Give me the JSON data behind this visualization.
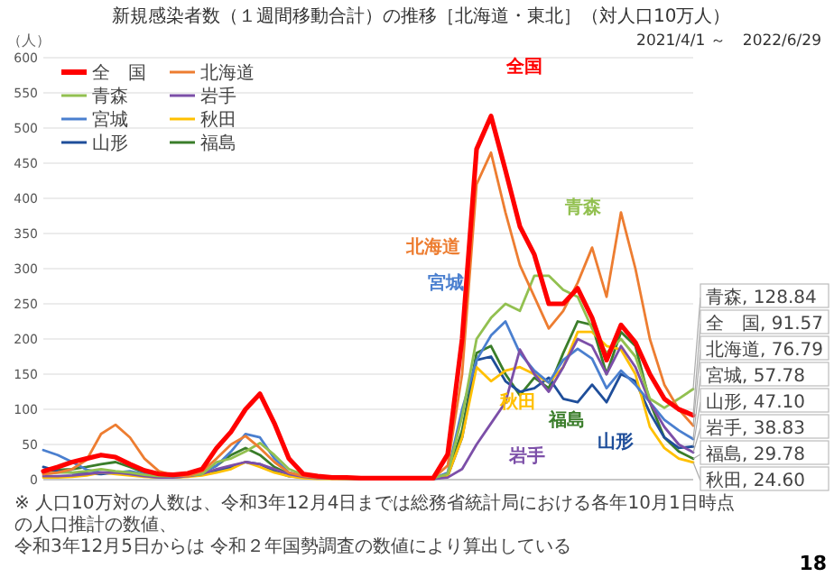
{
  "chart_data": {
    "type": "line",
    "title": "新規感染者数（１週間移動合計）の推移［北海道・東北］（対人口10万人）",
    "subtitle": "2021/4/1 ～　2022/6/29",
    "ylabel": "（人）",
    "categories": [
      null,
      null,
      null,
      null,
      null,
      null,
      null,
      null,
      null,
      null,
      null,
      null,
      null,
      null,
      null,
      null,
      null,
      null,
      null,
      null,
      null,
      null,
      null,
      null,
      null,
      null,
      null,
      null,
      null,
      null,
      null,
      null,
      null,
      null,
      null,
      null,
      null,
      null,
      null,
      null,
      null,
      null,
      null,
      null,
      null,
      null
    ],
    "ylim": [
      0,
      600
    ],
    "yticks": [
      0,
      50,
      100,
      150,
      200,
      250,
      300,
      350,
      400,
      450,
      500,
      550,
      600
    ],
    "grid": "y",
    "tick_labels": "y",
    "legend": "top left",
    "line_style": "solid",
    "marker": "none",
    "series": [
      {
        "name": "全　国",
        "color": "#ff0000",
        "values": [
          12,
          18,
          25,
          30,
          35,
          32,
          22,
          13,
          8,
          7,
          9,
          15,
          45,
          68,
          100,
          122,
          80,
          30,
          8,
          5,
          3,
          3,
          2,
          2,
          2,
          2,
          2,
          2,
          36,
          200,
          470,
          517,
          440,
          360,
          320,
          250,
          250,
          272,
          230,
          170,
          220,
          195,
          150,
          115,
          100,
          91.57
        ],
        "value_labels": [
          null,
          null,
          null,
          null,
          null,
          null,
          null,
          null,
          null,
          null,
          null,
          null,
          null,
          null,
          null,
          null,
          null,
          null,
          null,
          null,
          null,
          null,
          null,
          null,
          null,
          null,
          null,
          null,
          null,
          null,
          null,
          null,
          null,
          null,
          null,
          null,
          null,
          null,
          null,
          null,
          null,
          null,
          null,
          null,
          null,
          "全　国, 91.57"
        ]
      },
      {
        "name": "北海道",
        "color": "#ed7d31",
        "values": [
          8,
          10,
          15,
          28,
          65,
          78,
          60,
          30,
          12,
          6,
          5,
          12,
          30,
          50,
          62,
          45,
          25,
          10,
          5,
          3,
          2,
          2,
          2,
          2,
          2,
          2,
          2,
          2,
          20,
          150,
          420,
          465,
          380,
          305,
          260,
          215,
          240,
          280,
          330,
          260,
          380,
          300,
          200,
          135,
          100,
          76.79
        ],
        "value_labels": [
          null,
          null,
          null,
          null,
          null,
          null,
          null,
          null,
          null,
          null,
          null,
          null,
          null,
          null,
          null,
          null,
          null,
          null,
          null,
          null,
          null,
          null,
          null,
          null,
          null,
          null,
          null,
          null,
          null,
          null,
          null,
          null,
          null,
          null,
          null,
          null,
          null,
          null,
          null,
          null,
          null,
          null,
          null,
          null,
          null,
          "北海道, 76.79"
        ]
      },
      {
        "name": "青森",
        "color": "#92c050",
        "values": [
          8,
          10,
          10,
          12,
          15,
          12,
          10,
          7,
          5,
          5,
          6,
          8,
          25,
          30,
          40,
          52,
          35,
          15,
          7,
          4,
          3,
          2,
          2,
          2,
          2,
          2,
          2,
          2,
          8,
          90,
          200,
          230,
          250,
          240,
          290,
          290,
          270,
          260,
          215,
          180,
          200,
          175,
          115,
          102,
          115,
          128.84
        ],
        "value_labels": [
          null,
          null,
          null,
          null,
          null,
          null,
          null,
          null,
          null,
          null,
          null,
          null,
          null,
          null,
          null,
          null,
          null,
          null,
          null,
          null,
          null,
          null,
          null,
          null,
          null,
          null,
          null,
          null,
          null,
          null,
          null,
          null,
          null,
          null,
          null,
          null,
          null,
          null,
          null,
          null,
          null,
          null,
          null,
          null,
          null,
          "青森, 128.84"
        ]
      },
      {
        "name": "岩手",
        "color": "#7c4fa8",
        "values": [
          5,
          5,
          6,
          8,
          10,
          10,
          8,
          5,
          3,
          3,
          5,
          8,
          15,
          20,
          25,
          22,
          15,
          8,
          4,
          2,
          2,
          2,
          1,
          1,
          1,
          1,
          1,
          1,
          3,
          15,
          50,
          80,
          110,
          185,
          150,
          125,
          160,
          200,
          190,
          150,
          190,
          160,
          110,
          75,
          50,
          38.83
        ],
        "value_labels": [
          null,
          null,
          null,
          null,
          null,
          null,
          null,
          null,
          null,
          null,
          null,
          null,
          null,
          null,
          null,
          null,
          null,
          null,
          null,
          null,
          null,
          null,
          null,
          null,
          null,
          null,
          null,
          null,
          null,
          null,
          null,
          null,
          null,
          null,
          null,
          null,
          null,
          null,
          null,
          null,
          null,
          null,
          null,
          null,
          null,
          "岩手, 38.83"
        ]
      },
      {
        "name": "宮城",
        "color": "#4a7fcf",
        "values": [
          42,
          35,
          25,
          14,
          10,
          10,
          12,
          8,
          5,
          5,
          8,
          10,
          20,
          40,
          65,
          60,
          30,
          10,
          5,
          3,
          2,
          2,
          2,
          2,
          2,
          2,
          2,
          2,
          10,
          100,
          170,
          205,
          225,
          180,
          155,
          138,
          170,
          186,
          172,
          130,
          155,
          135,
          110,
          85,
          70,
          57.78
        ],
        "value_labels": [
          null,
          null,
          null,
          null,
          null,
          null,
          null,
          null,
          null,
          null,
          null,
          null,
          null,
          null,
          null,
          null,
          null,
          null,
          null,
          null,
          null,
          null,
          null,
          null,
          null,
          null,
          null,
          null,
          null,
          null,
          null,
          null,
          null,
          null,
          null,
          null,
          null,
          null,
          null,
          null,
          null,
          null,
          null,
          null,
          null,
          "宮城, 57.78"
        ]
      },
      {
        "name": "秋田",
        "color": "#ffc000",
        "values": [
          3,
          3,
          4,
          6,
          10,
          8,
          6,
          4,
          3,
          3,
          4,
          6,
          10,
          15,
          25,
          18,
          10,
          5,
          2,
          1,
          1,
          1,
          1,
          1,
          1,
          1,
          1,
          1,
          5,
          60,
          160,
          140,
          155,
          160,
          150,
          138,
          160,
          210,
          210,
          190,
          185,
          150,
          75,
          45,
          30,
          24.6
        ],
        "value_labels": [
          null,
          null,
          null,
          null,
          null,
          null,
          null,
          null,
          null,
          null,
          null,
          null,
          null,
          null,
          null,
          null,
          null,
          null,
          null,
          null,
          null,
          null,
          null,
          null,
          null,
          null,
          null,
          null,
          null,
          null,
          null,
          null,
          null,
          null,
          null,
          null,
          null,
          null,
          null,
          null,
          null,
          null,
          null,
          null,
          null,
          "秋田, 24.60"
        ]
      },
      {
        "name": "山形",
        "color": "#1f4e9a",
        "values": [
          18,
          12,
          10,
          9,
          8,
          10,
          8,
          5,
          3,
          3,
          5,
          7,
          12,
          18,
          25,
          22,
          12,
          5,
          3,
          2,
          2,
          1,
          1,
          1,
          1,
          1,
          1,
          1,
          5,
          60,
          170,
          175,
          140,
          125,
          130,
          145,
          115,
          110,
          135,
          110,
          150,
          140,
          95,
          60,
          45,
          47.1
        ],
        "value_labels": [
          null,
          null,
          null,
          null,
          null,
          null,
          null,
          null,
          null,
          null,
          null,
          null,
          null,
          null,
          null,
          null,
          null,
          null,
          null,
          null,
          null,
          null,
          null,
          null,
          null,
          null,
          null,
          null,
          null,
          null,
          null,
          null,
          null,
          null,
          null,
          null,
          null,
          null,
          null,
          null,
          null,
          null,
          null,
          null,
          null,
          "山形, 47.10"
        ]
      },
      {
        "name": "福島",
        "color": "#3a7d2a",
        "values": [
          12,
          14,
          15,
          18,
          22,
          25,
          18,
          10,
          6,
          5,
          6,
          10,
          20,
          35,
          45,
          35,
          18,
          8,
          4,
          2,
          2,
          2,
          1,
          1,
          1,
          1,
          1,
          1,
          5,
          70,
          180,
          190,
          150,
          120,
          145,
          130,
          180,
          225,
          220,
          150,
          210,
          190,
          110,
          60,
          40,
          29.78
        ],
        "value_labels": [
          null,
          null,
          null,
          null,
          null,
          null,
          null,
          null,
          null,
          null,
          null,
          null,
          null,
          null,
          null,
          null,
          null,
          null,
          null,
          null,
          null,
          null,
          null,
          null,
          null,
          null,
          null,
          null,
          null,
          null,
          null,
          null,
          null,
          null,
          null,
          null,
          null,
          null,
          null,
          null,
          null,
          null,
          null,
          null,
          null,
          "福島, 29.78"
        ]
      }
    ],
    "annotations": [
      "全国",
      "北海道",
      "青森",
      "宮城",
      "秋田",
      "福島",
      "山形",
      "岩手",
      "※ 人口10万対の人数は、令和3年12月4日までは総務省統計局における各年10月1日時点の人口推計の数値、",
      "令和3年12月5日からは 令和２年国勢調査の数値により算出している",
      "18"
    ]
  }
}
